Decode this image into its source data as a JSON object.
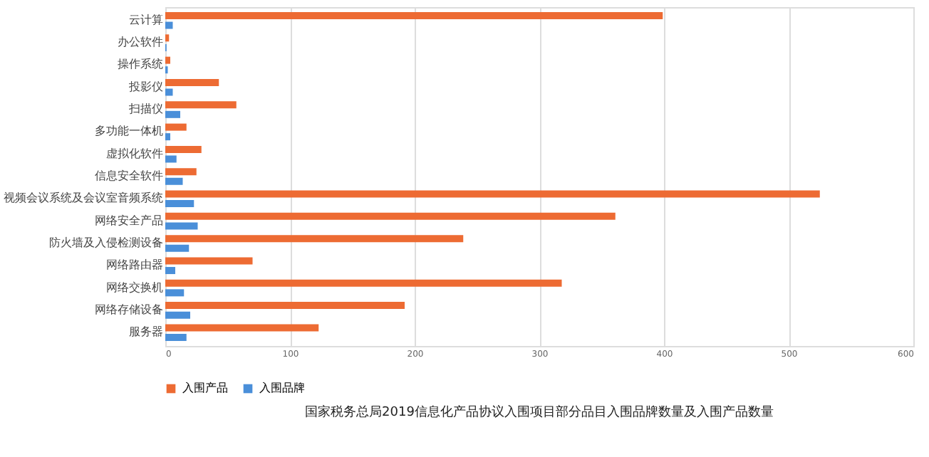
{
  "chart_data": {
    "type": "bar",
    "orientation": "horizontal",
    "title": "国家税务总局2019信息化产品协议入围项目部分品目入围品牌数量及入围产品数量",
    "categories": [
      "云计算",
      "办公软件",
      "操作系统",
      "投影仪",
      "扫描仪",
      "多功能一体机",
      "虚拟化软件",
      "信息安全软件",
      "视频会议系统及会议室音频系统",
      "网络安全产品",
      "防火墙及入侵检测设备",
      "网络路由器",
      "网络交换机",
      "网络存储设备",
      "服务器"
    ],
    "series": [
      {
        "name": "入围产品",
        "color": "#ed6b33",
        "values": [
          399,
          3,
          4,
          43,
          57,
          17,
          29,
          25,
          525,
          361,
          239,
          70,
          318,
          192,
          123
        ]
      },
      {
        "name": "入围品牌",
        "color": "#4a8fd9",
        "values": [
          6,
          1,
          2,
          6,
          12,
          4,
          9,
          14,
          23,
          26,
          19,
          8,
          15,
          20,
          17
        ]
      }
    ],
    "xlim": [
      0,
      600
    ],
    "xticks": [
      0,
      100,
      200,
      300,
      400,
      500,
      600
    ],
    "grid": "x",
    "legend": "bottom"
  }
}
